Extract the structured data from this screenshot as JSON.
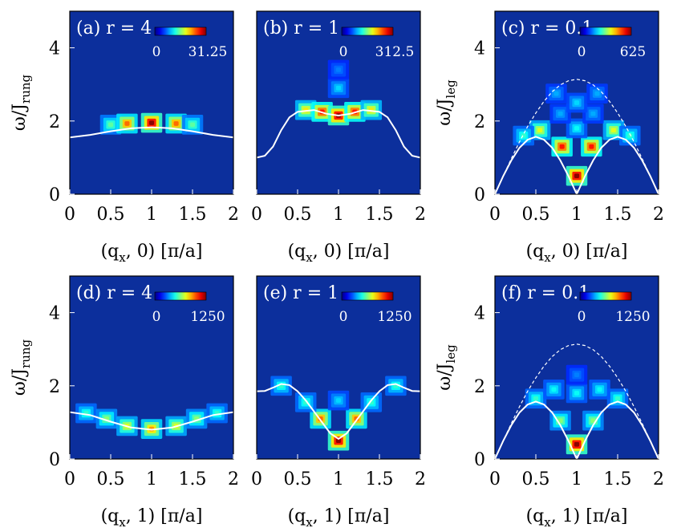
{
  "chart_data": [
    {
      "type": "heatmap",
      "title": "(a) r = 4",
      "xlabel": "(q",
      "xsub": "x",
      "xrest": ", 0) [π/a]",
      "ylabel": "ω/J",
      "ysub": "rung",
      "xlim": [
        0,
        2
      ],
      "ylim": [
        0,
        5
      ],
      "xticks": [
        "0",
        "0.5",
        "1",
        "1.5",
        "2"
      ],
      "yticks": [
        "0",
        "2",
        "4"
      ],
      "colorbar": {
        "min": "0",
        "max": "31.25"
      },
      "curves": [
        {
          "style": "solid",
          "x": [
            0,
            0.25,
            0.5,
            0.75,
            1.0,
            1.25,
            1.5,
            1.75,
            2.0
          ],
          "y": [
            1.55,
            1.62,
            1.72,
            1.8,
            1.83,
            1.8,
            1.72,
            1.62,
            1.55
          ]
        }
      ],
      "peaks": [
        {
          "x": 0.5,
          "y": 1.9,
          "intensity": 0.4
        },
        {
          "x": 0.7,
          "y": 1.93,
          "intensity": 0.75
        },
        {
          "x": 1.0,
          "y": 1.95,
          "intensity": 1.0
        },
        {
          "x": 1.3,
          "y": 1.93,
          "intensity": 0.75
        },
        {
          "x": 1.5,
          "y": 1.9,
          "intensity": 0.4
        }
      ]
    },
    {
      "type": "heatmap",
      "title": "(b) r = 1",
      "xlabel": "(q",
      "xsub": "x",
      "xrest": ", 0) [π/a]",
      "ylabel": "",
      "ysub": "",
      "xlim": [
        0,
        2
      ],
      "ylim": [
        0,
        5
      ],
      "xticks": [
        "0",
        "0.5",
        "1",
        "1.5",
        "2"
      ],
      "yticks": [],
      "colorbar": {
        "min": "0",
        "max": "312.5"
      },
      "curves": [
        {
          "style": "solid",
          "x": [
            0,
            0.1,
            0.2,
            0.3,
            0.4,
            0.5,
            0.7,
            0.85,
            1.0,
            1.15,
            1.3,
            1.5,
            1.6,
            1.7,
            1.8,
            1.9,
            2.0
          ],
          "y": [
            1.0,
            1.05,
            1.3,
            1.75,
            2.1,
            2.25,
            2.3,
            2.2,
            2.15,
            2.2,
            2.3,
            2.25,
            2.1,
            1.75,
            1.3,
            1.05,
            1.0
          ]
        }
      ],
      "peaks": [
        {
          "x": 0.6,
          "y": 2.3,
          "intensity": 0.6
        },
        {
          "x": 0.8,
          "y": 2.25,
          "intensity": 0.85
        },
        {
          "x": 1.0,
          "y": 2.15,
          "intensity": 1.0
        },
        {
          "x": 1.2,
          "y": 2.25,
          "intensity": 0.85
        },
        {
          "x": 1.4,
          "y": 2.3,
          "intensity": 0.6
        },
        {
          "x": 1.0,
          "y": 2.9,
          "intensity": 0.25
        },
        {
          "x": 1.0,
          "y": 3.4,
          "intensity": 0.15
        }
      ]
    },
    {
      "type": "heatmap",
      "title": "(c) r = 0.1",
      "xlabel": "(q",
      "xsub": "x",
      "xrest": ", 0) [π/a]",
      "ylabel": "ω/J",
      "ysub": "leg",
      "xlim": [
        0,
        2
      ],
      "ylim": [
        0,
        5
      ],
      "xticks": [
        "0",
        "0.5",
        "1",
        "1.5",
        "2"
      ],
      "yticks": [
        "0",
        "2",
        "4"
      ],
      "colorbar": {
        "min": "0",
        "max": "625"
      },
      "curves": [
        {
          "style": "solid",
          "x": [
            0,
            0.1,
            0.2,
            0.3,
            0.4,
            0.5,
            0.6,
            0.7,
            0.8,
            0.9,
            1.0,
            1.1,
            1.2,
            1.3,
            1.4,
            1.5,
            1.6,
            1.7,
            1.8,
            1.9,
            2.0
          ],
          "y": [
            0,
            0.49,
            0.92,
            1.27,
            1.49,
            1.57,
            1.49,
            1.27,
            0.92,
            0.49,
            0,
            0.49,
            0.92,
            1.27,
            1.49,
            1.57,
            1.49,
            1.27,
            0.92,
            0.49,
            0
          ]
        },
        {
          "style": "dashed",
          "x": [
            0,
            0.1,
            0.2,
            0.3,
            0.4,
            0.5,
            0.6,
            0.7,
            0.8,
            0.9,
            1.0,
            1.1,
            1.2,
            1.3,
            1.4,
            1.5,
            1.6,
            1.7,
            1.8,
            1.9,
            2.0
          ],
          "y": [
            0,
            0.49,
            0.97,
            1.43,
            1.85,
            2.22,
            2.54,
            2.8,
            2.99,
            3.1,
            3.14,
            3.1,
            2.99,
            2.8,
            2.54,
            2.22,
            1.85,
            1.43,
            0.97,
            0.49,
            0
          ]
        }
      ],
      "peaks": [
        {
          "x": 1.0,
          "y": 0.5,
          "intensity": 1.0
        },
        {
          "x": 0.82,
          "y": 1.3,
          "intensity": 0.85
        },
        {
          "x": 1.18,
          "y": 1.3,
          "intensity": 0.85
        },
        {
          "x": 0.55,
          "y": 1.75,
          "intensity": 0.55
        },
        {
          "x": 1.45,
          "y": 1.75,
          "intensity": 0.55
        },
        {
          "x": 0.35,
          "y": 1.6,
          "intensity": 0.35
        },
        {
          "x": 1.65,
          "y": 1.6,
          "intensity": 0.35
        },
        {
          "x": 1.0,
          "y": 1.8,
          "intensity": 0.3
        },
        {
          "x": 0.8,
          "y": 2.2,
          "intensity": 0.2
        },
        {
          "x": 1.2,
          "y": 2.2,
          "intensity": 0.2
        },
        {
          "x": 1.0,
          "y": 2.5,
          "intensity": 0.25
        },
        {
          "x": 0.75,
          "y": 2.75,
          "intensity": 0.2
        },
        {
          "x": 1.25,
          "y": 2.75,
          "intensity": 0.2
        }
      ]
    },
    {
      "type": "heatmap",
      "title": "(d) r = 4",
      "xlabel": "(q",
      "xsub": "x",
      "xrest": ", 1) [π/a]",
      "ylabel": "ω/J",
      "ysub": "rung",
      "xlim": [
        0,
        2
      ],
      "ylim": [
        0,
        5
      ],
      "xticks": [
        "0",
        "0.5",
        "1",
        "1.5",
        "2"
      ],
      "yticks": [
        "0",
        "2",
        "4"
      ],
      "colorbar": {
        "min": "0",
        "max": "1250"
      },
      "curves": [
        {
          "style": "solid",
          "x": [
            0,
            0.25,
            0.5,
            0.75,
            1.0,
            1.25,
            1.5,
            1.75,
            2.0
          ],
          "y": [
            1.28,
            1.2,
            1.02,
            0.86,
            0.8,
            0.86,
            1.02,
            1.2,
            1.28
          ]
        }
      ],
      "peaks": [
        {
          "x": 0.2,
          "y": 1.25,
          "intensity": 0.35
        },
        {
          "x": 0.45,
          "y": 1.1,
          "intensity": 0.45
        },
        {
          "x": 0.7,
          "y": 0.9,
          "intensity": 0.55
        },
        {
          "x": 1.0,
          "y": 0.82,
          "intensity": 0.7
        },
        {
          "x": 1.3,
          "y": 0.9,
          "intensity": 0.55
        },
        {
          "x": 1.55,
          "y": 1.1,
          "intensity": 0.45
        },
        {
          "x": 1.8,
          "y": 1.25,
          "intensity": 0.35
        }
      ]
    },
    {
      "type": "heatmap",
      "title": "(e) r = 1",
      "xlabel": "(q",
      "xsub": "x",
      "xrest": ", 1) [π/a]",
      "ylabel": "",
      "ysub": "",
      "xlim": [
        0,
        2
      ],
      "ylim": [
        0,
        5
      ],
      "xticks": [
        "0",
        "0.5",
        "1",
        "1.5",
        "2"
      ],
      "yticks": [],
      "colorbar": {
        "min": "0",
        "max": "1250"
      },
      "curves": [
        {
          "style": "solid",
          "x": [
            0,
            0.1,
            0.2,
            0.3,
            0.4,
            0.5,
            0.6,
            0.7,
            0.8,
            0.9,
            1.0,
            1.1,
            1.2,
            1.3,
            1.4,
            1.5,
            1.6,
            1.7,
            1.8,
            1.9,
            2.0
          ],
          "y": [
            1.85,
            1.86,
            1.95,
            2.05,
            2.02,
            1.85,
            1.6,
            1.3,
            1.0,
            0.7,
            0.55,
            0.7,
            1.0,
            1.3,
            1.6,
            1.85,
            2.02,
            2.05,
            1.95,
            1.86,
            1.85
          ]
        }
      ],
      "peaks": [
        {
          "x": 1.0,
          "y": 0.5,
          "intensity": 1.0
        },
        {
          "x": 0.78,
          "y": 1.1,
          "intensity": 0.75
        },
        {
          "x": 1.22,
          "y": 1.1,
          "intensity": 0.75
        },
        {
          "x": 0.6,
          "y": 1.55,
          "intensity": 0.35
        },
        {
          "x": 1.4,
          "y": 1.55,
          "intensity": 0.35
        },
        {
          "x": 0.3,
          "y": 2.0,
          "intensity": 0.35
        },
        {
          "x": 1.7,
          "y": 2.0,
          "intensity": 0.35
        },
        {
          "x": 1.0,
          "y": 1.6,
          "intensity": 0.25
        }
      ]
    },
    {
      "type": "heatmap",
      "title": "(f) r = 0.1",
      "xlabel": "(q",
      "xsub": "x",
      "xrest": ", 1) [π/a]",
      "ylabel": "ω/J",
      "ysub": "leg",
      "xlim": [
        0,
        2
      ],
      "ylim": [
        0,
        5
      ],
      "xticks": [
        "0",
        "0.5",
        "1",
        "1.5",
        "2"
      ],
      "yticks": [
        "0",
        "2",
        "4"
      ],
      "colorbar": {
        "min": "0",
        "max": "1250"
      },
      "curves": [
        {
          "style": "solid",
          "x": [
            0,
            0.1,
            0.2,
            0.3,
            0.4,
            0.5,
            0.6,
            0.7,
            0.8,
            0.9,
            1.0,
            1.1,
            1.2,
            1.3,
            1.4,
            1.5,
            1.6,
            1.7,
            1.8,
            1.9,
            2.0
          ],
          "y": [
            0,
            0.49,
            0.92,
            1.27,
            1.49,
            1.57,
            1.49,
            1.27,
            0.92,
            0.49,
            0,
            0.49,
            0.92,
            1.27,
            1.49,
            1.57,
            1.49,
            1.27,
            0.92,
            0.49,
            0
          ]
        },
        {
          "style": "dashed",
          "x": [
            0,
            0.1,
            0.2,
            0.3,
            0.4,
            0.5,
            0.6,
            0.7,
            0.8,
            0.9,
            1.0,
            1.1,
            1.2,
            1.3,
            1.4,
            1.5,
            1.6,
            1.7,
            1.8,
            1.9,
            2.0
          ],
          "y": [
            0,
            0.49,
            0.97,
            1.43,
            1.85,
            2.22,
            2.54,
            2.8,
            2.99,
            3.1,
            3.14,
            3.1,
            2.99,
            2.8,
            2.54,
            2.22,
            1.85,
            1.43,
            0.97,
            0.49,
            0
          ]
        }
      ],
      "peaks": [
        {
          "x": 1.0,
          "y": 0.4,
          "intensity": 1.0
        },
        {
          "x": 0.8,
          "y": 1.05,
          "intensity": 0.45
        },
        {
          "x": 1.2,
          "y": 1.05,
          "intensity": 0.45
        },
        {
          "x": 0.5,
          "y": 1.65,
          "intensity": 0.35
        },
        {
          "x": 1.5,
          "y": 1.65,
          "intensity": 0.35
        },
        {
          "x": 1.0,
          "y": 1.8,
          "intensity": 0.3
        },
        {
          "x": 0.72,
          "y": 1.9,
          "intensity": 0.3
        },
        {
          "x": 1.28,
          "y": 1.9,
          "intensity": 0.3
        },
        {
          "x": 1.0,
          "y": 2.3,
          "intensity": 0.15
        }
      ]
    }
  ]
}
